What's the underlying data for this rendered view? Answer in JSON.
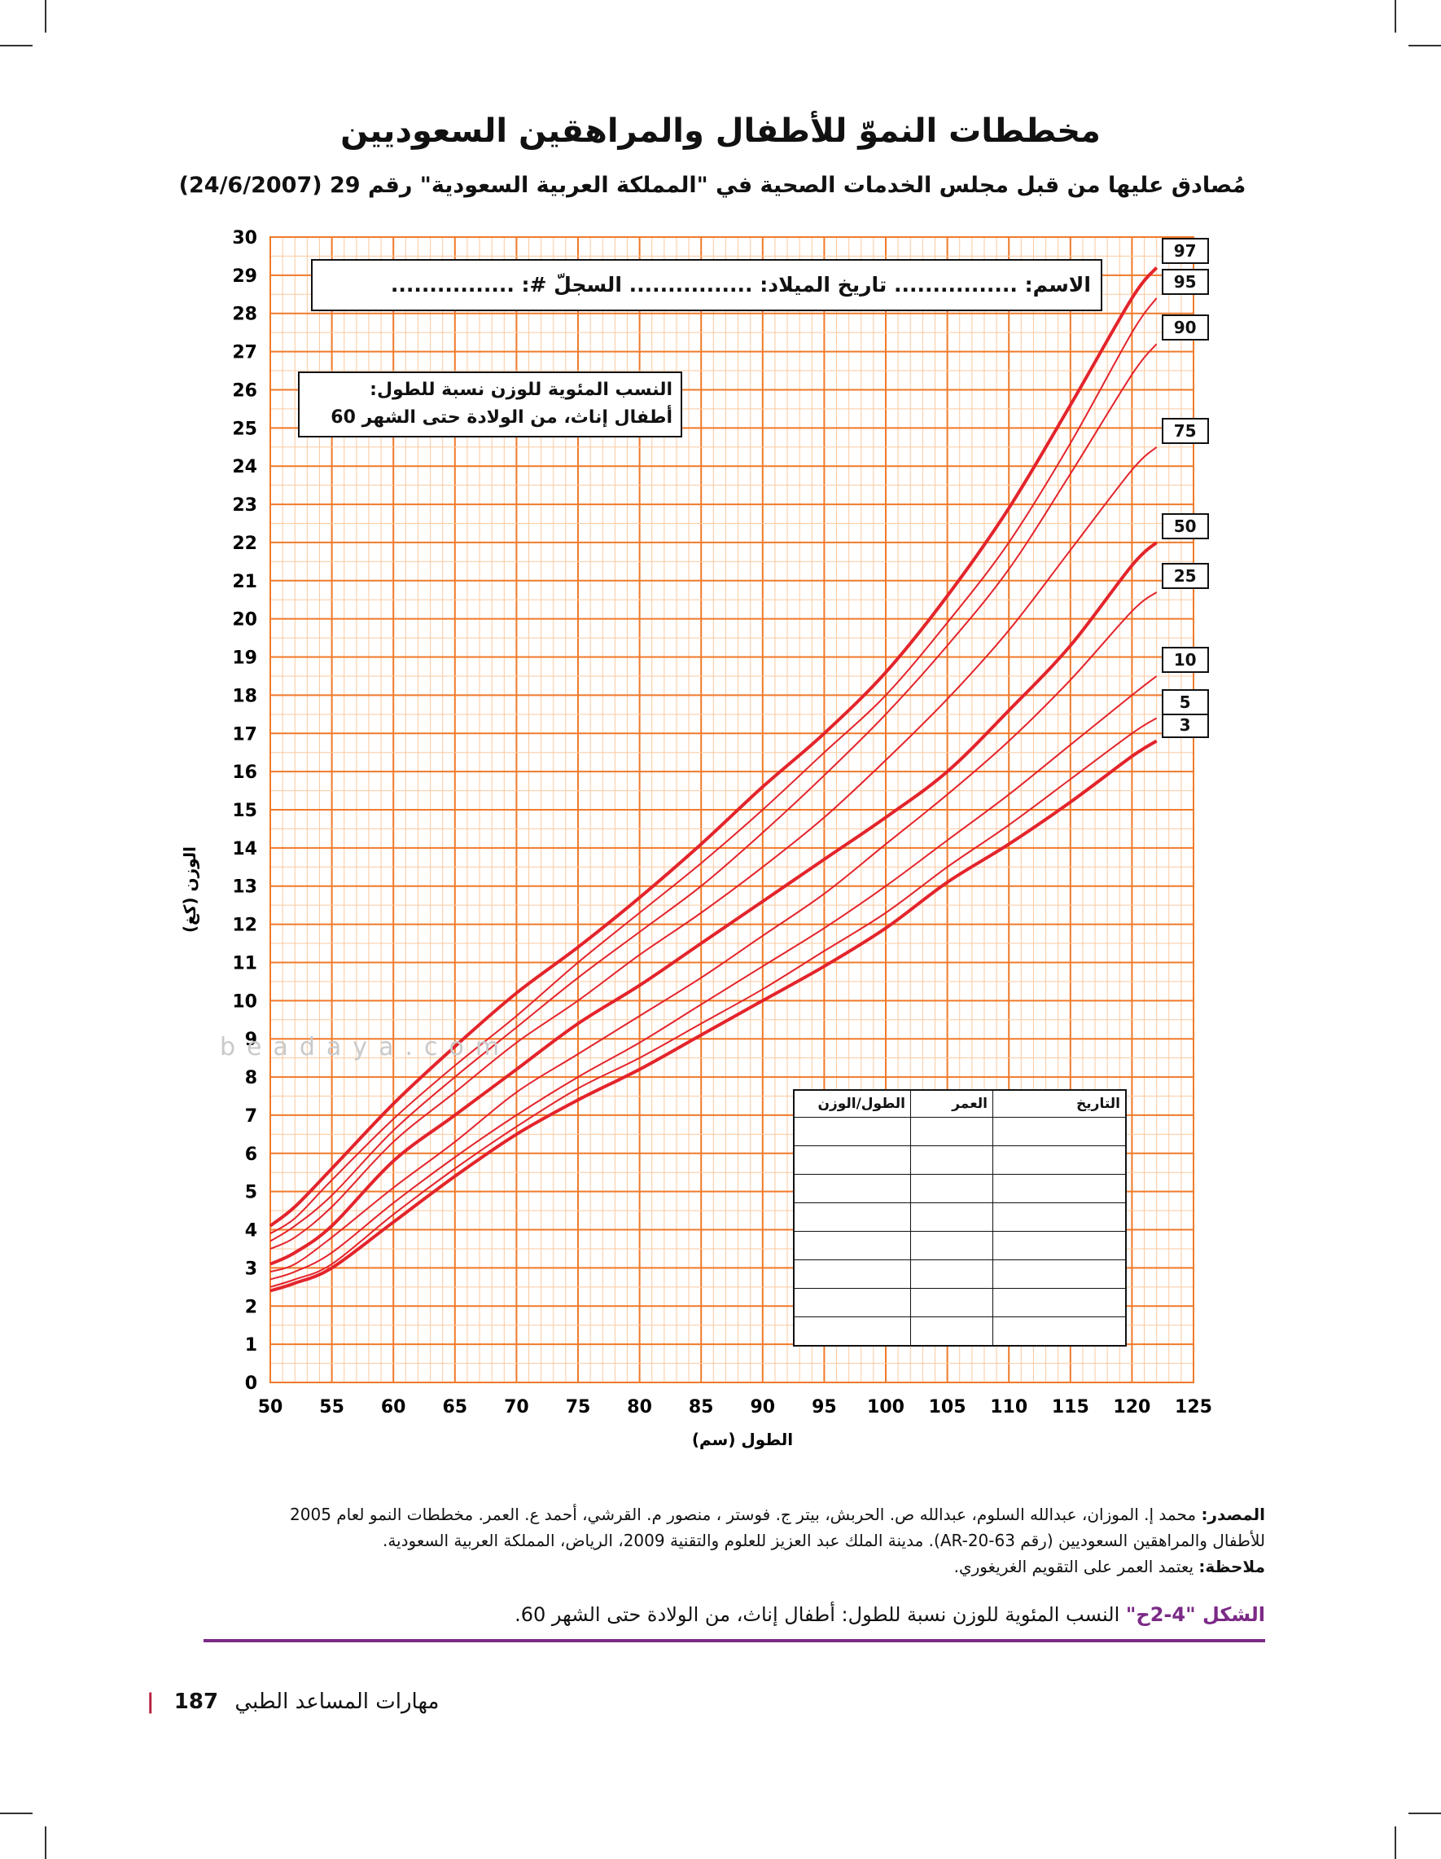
{
  "page": {
    "title": "مخططات النموّ للأطفال والمراهقين السعوديين",
    "subtitle": "مُصادق عليها من قبل مجلس الخدمات الصحية في \"المملكة العربية السعودية\" رقم 29 (24/6/2007)",
    "name_line": "الاسم: ................ تاريخ الميلاد: ................ السجلّ #: ................",
    "chart_desc_line1": "النسب المئوية للوزن نسبة للطول:",
    "chart_desc_line2": "أطفال إناث، من الولادة حتى الشهر 60",
    "record_table": {
      "headers": [
        "التاريخ",
        "العمر",
        "الطول/الوزن"
      ],
      "rows": [
        [
          "",
          "",
          ""
        ],
        [
          "",
          "",
          ""
        ],
        [
          "",
          "",
          ""
        ],
        [
          "",
          "",
          ""
        ],
        [
          "",
          "",
          ""
        ],
        [
          "",
          "",
          ""
        ],
        [
          "",
          "",
          ""
        ],
        [
          "",
          "",
          ""
        ]
      ]
    },
    "watermark": "beadaya.com",
    "source_label": "المصدر:",
    "source_line1": "محمد إ. الموزان، عبدالله السلوم، عبدالله ص. الحربش، بيتر ج. فوستر ، منصور م. القرشي، أحمد ع. العمر. مخططات النمو لعام 2005",
    "source_line2": "للأطفال والمراهقين السعوديين (رقم AR-20-63). مدينة الملك عبد العزيز للعلوم والتقنية 2009، الرياض، المملكة العربية السعودية.",
    "note_label": "ملاحظة:",
    "note_text": "يعتمد العمر على التقويم الغريغوري.",
    "figure_label": "الشكل \"4-2ح\"",
    "figure_caption": "النسب المئوية للوزن نسبة للطول: أطفال إناث، من الولادة حتى الشهر 60.",
    "footer_page": "187",
    "footer_book": "مهارات المساعد الطبي",
    "colors": {
      "grid_major": "#f07a2a",
      "grid_minor": "#fbc99f",
      "curve": "#e3242b",
      "accent": "#7b2a86"
    }
  },
  "chart_data": {
    "type": "line",
    "title": "النسب المئوية للوزن نسبة للطول: أطفال إناث، من الولادة حتى الشهر 60",
    "xlabel": "الطول (سم)",
    "ylabel": "الوزن (كغ)",
    "xlim": [
      50,
      125
    ],
    "ylim": [
      0,
      30
    ],
    "x_ticks": [
      50,
      55,
      60,
      65,
      70,
      75,
      80,
      85,
      90,
      95,
      100,
      105,
      110,
      115,
      120,
      125
    ],
    "y_ticks": [
      0,
      1,
      2,
      3,
      4,
      5,
      6,
      7,
      8,
      9,
      10,
      11,
      12,
      13,
      14,
      15,
      16,
      17,
      18,
      19,
      20,
      21,
      22,
      23,
      24,
      25,
      26,
      27,
      28,
      29,
      30
    ],
    "grid": true,
    "x": [
      50,
      52,
      55,
      60,
      65,
      70,
      75,
      80,
      85,
      90,
      95,
      100,
      105,
      110,
      115,
      120,
      122
    ],
    "series": [
      {
        "name": "3",
        "bold": true,
        "values": [
          2.4,
          2.6,
          3.0,
          4.2,
          5.4,
          6.5,
          7.4,
          8.2,
          9.1,
          10.0,
          10.9,
          11.9,
          13.1,
          14.1,
          15.2,
          16.4,
          16.8
        ]
      },
      {
        "name": "5",
        "bold": false,
        "values": [
          2.5,
          2.7,
          3.1,
          4.4,
          5.6,
          6.7,
          7.7,
          8.5,
          9.4,
          10.3,
          11.3,
          12.3,
          13.5,
          14.6,
          15.8,
          17.0,
          17.4
        ]
      },
      {
        "name": "10",
        "bold": false,
        "values": [
          2.7,
          2.9,
          3.4,
          4.7,
          5.9,
          7.0,
          8.0,
          8.9,
          9.9,
          10.9,
          11.9,
          13.0,
          14.2,
          15.4,
          16.7,
          18.0,
          18.5
        ]
      },
      {
        "name": "25",
        "bold": false,
        "values": [
          2.9,
          3.1,
          3.8,
          5.1,
          6.3,
          7.6,
          8.6,
          9.6,
          10.6,
          11.7,
          12.8,
          14.1,
          15.4,
          16.8,
          18.4,
          20.2,
          20.7
        ]
      },
      {
        "name": "50",
        "bold": true,
        "values": [
          3.1,
          3.4,
          4.1,
          5.8,
          7.0,
          8.2,
          9.4,
          10.4,
          11.5,
          12.6,
          13.7,
          14.8,
          16.0,
          17.6,
          19.3,
          21.4,
          22.0
        ]
      },
      {
        "name": "75",
        "bold": false,
        "values": [
          3.5,
          3.8,
          4.6,
          6.3,
          7.6,
          8.9,
          10.0,
          11.2,
          12.3,
          13.5,
          14.8,
          16.3,
          17.9,
          19.7,
          21.8,
          23.9,
          24.5
        ]
      },
      {
        "name": "90",
        "bold": false,
        "values": [
          3.7,
          4.1,
          4.9,
          6.6,
          8.0,
          9.3,
          10.6,
          11.8,
          13.0,
          14.4,
          15.9,
          17.5,
          19.3,
          21.3,
          23.8,
          26.4,
          27.2
        ]
      },
      {
        "name": "95",
        "bold": false,
        "values": [
          3.9,
          4.3,
          5.3,
          6.9,
          8.3,
          9.6,
          11.0,
          12.3,
          13.6,
          15.0,
          16.5,
          18.0,
          19.9,
          22.0,
          24.6,
          27.5,
          28.4
        ]
      },
      {
        "name": "97",
        "bold": true,
        "values": [
          4.1,
          4.6,
          5.6,
          7.3,
          8.8,
          10.2,
          11.4,
          12.7,
          14.1,
          15.6,
          17.0,
          18.6,
          20.6,
          22.9,
          25.6,
          28.4,
          29.2
        ]
      }
    ]
  }
}
